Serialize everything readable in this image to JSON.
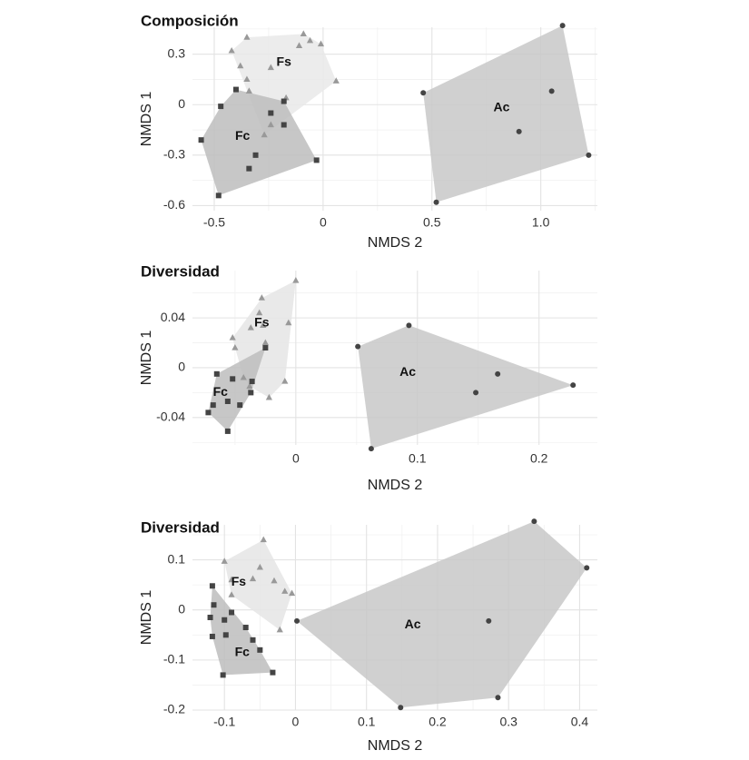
{
  "chart_data": [
    {
      "type": "scatter",
      "title": "Composición",
      "xlabel": "NMDS 2",
      "ylabel": "NMDS 1",
      "xlim": [
        -0.6,
        1.26
      ],
      "ylim": [
        -0.63,
        0.46
      ],
      "xticks": [
        -0.5,
        0,
        0.5,
        1.0
      ],
      "xtick_labels": [
        "-0.5",
        "0",
        "0.5",
        "1.0"
      ],
      "yticks": [
        -0.6,
        -0.3,
        0,
        0.3
      ],
      "ytick_labels": [
        "-0.6",
        "-0.3",
        "0",
        "0.3"
      ],
      "grid": true,
      "groups": [
        {
          "name": "Fs",
          "marker": "triangle",
          "color": "#999999",
          "fill": "#e9e9e9",
          "label_pos": [
            -0.18,
            0.25
          ],
          "points": [
            [
              -0.35,
              0.4
            ],
            [
              -0.42,
              0.32
            ],
            [
              -0.38,
              0.23
            ],
            [
              -0.35,
              0.15
            ],
            [
              -0.24,
              0.22
            ],
            [
              -0.11,
              0.35
            ],
            [
              -0.09,
              0.42
            ],
            [
              -0.06,
              0.38
            ],
            [
              -0.01,
              0.36
            ],
            [
              0.06,
              0.14
            ],
            [
              -0.17,
              0.04
            ],
            [
              -0.24,
              -0.12
            ],
            [
              -0.27,
              -0.18
            ],
            [
              -0.34,
              0.08
            ]
          ]
        },
        {
          "name": "Fc",
          "marker": "square",
          "color": "#444444",
          "fill": "#bdbdbd",
          "label_pos": [
            -0.37,
            -0.19
          ],
          "points": [
            [
              -0.47,
              -0.01
            ],
            [
              -0.4,
              0.09
            ],
            [
              -0.24,
              -0.05
            ],
            [
              -0.18,
              0.02
            ],
            [
              -0.18,
              -0.12
            ],
            [
              -0.31,
              -0.3
            ],
            [
              -0.34,
              -0.38
            ],
            [
              -0.48,
              -0.54
            ],
            [
              -0.56,
              -0.21
            ],
            [
              -0.03,
              -0.33
            ]
          ]
        },
        {
          "name": "Ac",
          "marker": "circle",
          "color": "#444444",
          "fill": "#c8c8c8",
          "label_pos": [
            0.82,
            -0.02
          ],
          "points": [
            [
              0.46,
              0.07
            ],
            [
              1.1,
              0.47
            ],
            [
              1.05,
              0.08
            ],
            [
              0.9,
              -0.16
            ],
            [
              1.22,
              -0.3
            ],
            [
              0.52,
              -0.58
            ]
          ]
        }
      ]
    },
    {
      "type": "scatter",
      "title": "Diversidad",
      "xlabel": "NMDS 2",
      "ylabel": "NMDS 1",
      "xlim": [
        -0.085,
        0.248
      ],
      "ylim": [
        -0.062,
        0.078
      ],
      "xticks": [
        0,
        0.1,
        0.2
      ],
      "xtick_labels": [
        "0",
        "0.1",
        "0.2"
      ],
      "yticks": [
        -0.04,
        0,
        0.04
      ],
      "ytick_labels": [
        "-0.04",
        "0",
        "0.04"
      ],
      "grid": true,
      "groups": [
        {
          "name": "Fs",
          "marker": "triangle",
          "color": "#999999",
          "fill": "#e5e5e5",
          "label_pos": [
            -0.028,
            0.036
          ],
          "points": [
            [
              0,
              0.07
            ],
            [
              -0.028,
              0.056
            ],
            [
              -0.03,
              0.044
            ],
            [
              -0.037,
              0.032
            ],
            [
              -0.052,
              0.024
            ],
            [
              -0.027,
              0.034
            ],
            [
              -0.006,
              0.036
            ],
            [
              -0.05,
              0.016
            ],
            [
              -0.025,
              0.02
            ],
            [
              -0.009,
              -0.011
            ],
            [
              -0.022,
              -0.024
            ],
            [
              -0.038,
              -0.015
            ],
            [
              -0.043,
              -0.008
            ]
          ]
        },
        {
          "name": "Fc",
          "marker": "square",
          "color": "#444444",
          "fill": "#bdbdbd",
          "label_pos": [
            -0.062,
            -0.02
          ],
          "points": [
            [
              -0.065,
              -0.005
            ],
            [
              -0.052,
              -0.009
            ],
            [
              -0.036,
              -0.011
            ],
            [
              -0.025,
              0.016
            ],
            [
              -0.037,
              -0.02
            ],
            [
              -0.046,
              -0.03
            ],
            [
              -0.056,
              -0.027
            ],
            [
              -0.068,
              -0.03
            ],
            [
              -0.072,
              -0.036
            ],
            [
              -0.056,
              -0.051
            ]
          ]
        },
        {
          "name": "Ac",
          "marker": "circle",
          "color": "#444444",
          "fill": "#c8c8c8",
          "label_pos": [
            0.092,
            -0.004
          ],
          "points": [
            [
              0.051,
              0.017
            ],
            [
              0.093,
              0.034
            ],
            [
              0.166,
              -0.005
            ],
            [
              0.228,
              -0.014
            ],
            [
              0.148,
              -0.02
            ],
            [
              0.062,
              -0.065
            ]
          ]
        }
      ]
    },
    {
      "type": "scatter",
      "title": "Diversidad",
      "xlabel": "NMDS 2",
      "ylabel": "NMDS 1",
      "xlim": [
        -0.145,
        0.425
      ],
      "ylim": [
        -0.2,
        0.17
      ],
      "xticks": [
        -0.1,
        0,
        0.1,
        0.2,
        0.3,
        0.4
      ],
      "xtick_labels": [
        "-0.1",
        "0",
        "0.1",
        "0.2",
        "0.3",
        "0.4"
      ],
      "yticks": [
        -0.2,
        -0.1,
        0,
        0.1
      ],
      "ytick_labels": [
        "-0.2",
        "-0.1",
        "0",
        "0.1"
      ],
      "grid": true,
      "groups": [
        {
          "name": "Fs",
          "marker": "triangle",
          "color": "#999999",
          "fill": "#e5e5e5",
          "label_pos": [
            -0.08,
            0.055
          ],
          "points": [
            [
              -0.1,
              0.097
            ],
            [
              -0.045,
              0.14
            ],
            [
              -0.05,
              0.085
            ],
            [
              -0.06,
              0.062
            ],
            [
              -0.09,
              0.06
            ],
            [
              -0.03,
              0.058
            ],
            [
              -0.015,
              0.037
            ],
            [
              -0.005,
              0.033
            ],
            [
              -0.09,
              0.03
            ],
            [
              -0.022,
              -0.04
            ]
          ]
        },
        {
          "name": "Fc",
          "marker": "square",
          "color": "#444444",
          "fill": "#bdbdbd",
          "label_pos": [
            -0.075,
            -0.085
          ],
          "points": [
            [
              -0.117,
              0.048
            ],
            [
              -0.115,
              0.01
            ],
            [
              -0.1,
              -0.02
            ],
            [
              -0.12,
              -0.015
            ],
            [
              -0.09,
              -0.005
            ],
            [
              -0.07,
              -0.035
            ],
            [
              -0.098,
              -0.05
            ],
            [
              -0.117,
              -0.053
            ],
            [
              -0.06,
              -0.06
            ],
            [
              -0.032,
              -0.125
            ],
            [
              -0.102,
              -0.13
            ],
            [
              -0.05,
              -0.08
            ]
          ]
        },
        {
          "name": "Ac",
          "marker": "circle",
          "color": "#444444",
          "fill": "#c8c8c8",
          "label_pos": [
            0.165,
            -0.03
          ],
          "points": [
            [
              0.002,
              -0.022
            ],
            [
              0.336,
              0.177
            ],
            [
              0.41,
              0.084
            ],
            [
              0.272,
              -0.022
            ],
            [
              0.285,
              -0.175
            ],
            [
              0.148,
              -0.195
            ]
          ]
        }
      ]
    }
  ]
}
